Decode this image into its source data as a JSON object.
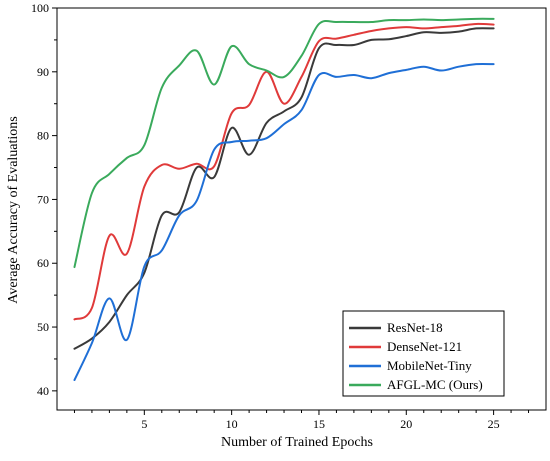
{
  "chart_data": {
    "type": "line",
    "title": "",
    "xlabel": "Number of Trained Epochs",
    "ylabel": "Average Accuracy of Evaluations",
    "xlim": [
      0,
      28
    ],
    "ylim": [
      37,
      100
    ],
    "xticks": [
      5,
      10,
      15,
      20,
      25
    ],
    "yticks": [
      40,
      50,
      60,
      70,
      80,
      90,
      100
    ],
    "grid": false,
    "legend_position": "bottom-right",
    "series": [
      {
        "name": "ResNet-18",
        "color": "#3a3a3a",
        "x": [
          1,
          2,
          3,
          4,
          5,
          6,
          7,
          8,
          9,
          10,
          11,
          12,
          13,
          14,
          15,
          16,
          17,
          18,
          19,
          20,
          21,
          22,
          23,
          24,
          25
        ],
        "values": [
          46.6,
          48.2,
          50.8,
          55.0,
          58.5,
          67.5,
          68.0,
          75.0,
          73.5,
          81.2,
          77.0,
          82.0,
          83.8,
          86.0,
          93.7,
          94.2,
          94.2,
          95.0,
          95.1,
          95.6,
          96.2,
          96.1,
          96.3,
          96.8,
          96.8
        ]
      },
      {
        "name": "DenseNet-121",
        "color": "#e03a3a",
        "x": [
          1,
          2,
          3,
          4,
          5,
          6,
          7,
          8,
          9,
          10,
          11,
          12,
          13,
          14,
          15,
          16,
          17,
          18,
          19,
          20,
          21,
          22,
          23,
          24,
          25
        ],
        "values": [
          51.2,
          53.0,
          64.3,
          61.5,
          72.0,
          75.4,
          74.8,
          75.6,
          75.2,
          83.5,
          84.8,
          90.0,
          85.0,
          89.2,
          94.8,
          95.2,
          95.8,
          96.4,
          96.8,
          97.0,
          96.8,
          97.0,
          97.2,
          97.5,
          97.4
        ]
      },
      {
        "name": "MobileNet-Tiny",
        "color": "#1f6fd6",
        "x": [
          1,
          2,
          3,
          4,
          5,
          6,
          7,
          8,
          9,
          10,
          11,
          12,
          13,
          14,
          15,
          16,
          17,
          18,
          19,
          20,
          21,
          22,
          23,
          24,
          25
        ],
        "values": [
          41.7,
          47.5,
          54.5,
          48.0,
          59.5,
          62.0,
          67.5,
          69.8,
          77.8,
          79.0,
          79.2,
          79.6,
          81.8,
          84.0,
          89.5,
          89.2,
          89.5,
          89.0,
          89.8,
          90.3,
          90.8,
          90.2,
          90.8,
          91.2,
          91.2
        ]
      },
      {
        "name": "AFGL-MC (Ours)",
        "color": "#3aaa5c",
        "x": [
          1,
          2,
          3,
          4,
          5,
          6,
          7,
          8,
          9,
          10,
          11,
          12,
          13,
          14,
          15,
          16,
          17,
          18,
          19,
          20,
          21,
          22,
          23,
          24,
          25
        ],
        "values": [
          59.4,
          71.0,
          74.0,
          76.5,
          78.5,
          87.5,
          91.0,
          93.3,
          88.0,
          94.0,
          91.2,
          90.2,
          89.2,
          92.5,
          97.5,
          97.8,
          97.8,
          97.8,
          98.1,
          98.1,
          98.2,
          98.1,
          98.2,
          98.3,
          98.3
        ]
      }
    ]
  }
}
